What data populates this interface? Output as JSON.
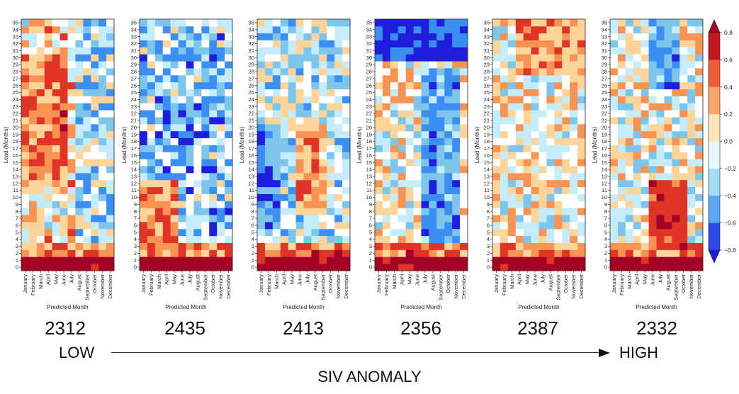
{
  "chart_data": {
    "type": "heatmap",
    "n_panels": 6,
    "panels": [
      {
        "label": "2312"
      },
      {
        "label": "2435"
      },
      {
        "label": "2413"
      },
      {
        "label": "2356"
      },
      {
        "label": "2387"
      },
      {
        "label": "2332"
      }
    ],
    "x_categories": [
      "January",
      "February",
      "March",
      "April",
      "May",
      "June",
      "July",
      "August",
      "September",
      "October",
      "November",
      "December"
    ],
    "y_categories": [
      0,
      1,
      2,
      3,
      4,
      5,
      6,
      7,
      8,
      9,
      10,
      11,
      12,
      13,
      14,
      15,
      16,
      17,
      18,
      19,
      20,
      21,
      22,
      23,
      24,
      25,
      26,
      27,
      28,
      29,
      30,
      31,
      32,
      33,
      34,
      35
    ],
    "xlabel": "Predicted Month",
    "ylabel": "Lead (Months)",
    "colorbar": {
      "colormap": "RdYlBu_r",
      "range": [
        -0.8,
        0.8
      ],
      "ticks": [
        "0.8",
        "0.6",
        "0.4",
        "0.2",
        "0.0",
        "−0.2",
        "−0.4",
        "−0.6",
        "−0.8"
      ],
      "tick_values": [
        0.8,
        0.6,
        0.4,
        0.2,
        0.0,
        -0.2,
        -0.4,
        -0.6,
        -0.8
      ]
    }
  },
  "annotations": {
    "low_label": "LOW",
    "high_label": "HIGH",
    "bottom_title": "SIV ANOMALY"
  },
  "colors": {
    "dark_red": "#a50026",
    "red": "#e03428",
    "orange": "#f99353",
    "light_orange": "#fdd59a",
    "white": "#ffffff",
    "light_blue": "#c5ecfa",
    "blue": "#7ec5ec",
    "mid_blue": "#3c8ff0",
    "dark_blue": "#1e1edc"
  }
}
